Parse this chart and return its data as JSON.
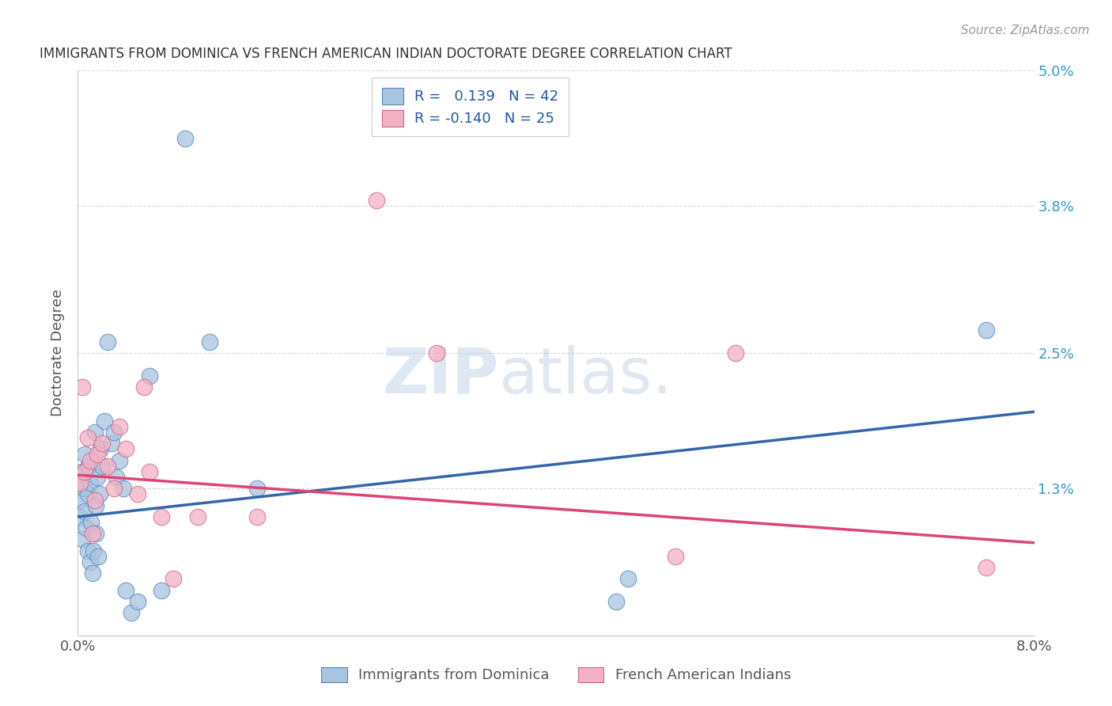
{
  "title": "IMMIGRANTS FROM DOMINICA VS FRENCH AMERICAN INDIAN DOCTORATE DEGREE CORRELATION CHART",
  "source": "Source: ZipAtlas.com",
  "ylabel": "Doctorate Degree",
  "blue_label": "Immigrants from Dominica",
  "pink_label": "French American Indians",
  "blue_R": "0.139",
  "blue_N": "42",
  "pink_R": "-0.140",
  "pink_N": "25",
  "blue_color": "#a8c4e0",
  "pink_color": "#f4b0c4",
  "blue_edge_color": "#5588bb",
  "pink_edge_color": "#cc6688",
  "blue_line_color": "#3366aa",
  "pink_line_color": "#dd4477",
  "watermark_zip": "ZIP",
  "watermark_atlas": "atlas.",
  "xmin": 0.0,
  "xmax": 8.0,
  "ymin": 0.0,
  "ymax": 5.0,
  "ytick_vals": [
    0.0,
    1.3,
    2.5,
    3.8,
    5.0
  ],
  "ytick_labels": [
    "",
    "1.3%",
    "2.5%",
    "3.8%",
    "5.0%"
  ],
  "xtick_vals": [
    0.0,
    2.0,
    4.0,
    6.0,
    8.0
  ],
  "xtick_labels": [
    "0.0%",
    "",
    "",
    "",
    "8.0%"
  ],
  "blue_x": [
    0.02,
    0.02,
    0.03,
    0.04,
    0.05,
    0.06,
    0.06,
    0.07,
    0.08,
    0.08,
    0.09,
    0.1,
    0.1,
    0.11,
    0.12,
    0.13,
    0.14,
    0.15,
    0.15,
    0.16,
    0.17,
    0.18,
    0.19,
    0.2,
    0.22,
    0.25,
    0.28,
    0.3,
    0.32,
    0.35,
    0.38,
    0.4,
    0.45,
    0.5,
    0.6,
    0.7,
    0.9,
    1.1,
    1.5,
    4.5,
    4.6,
    7.6
  ],
  "blue_y": [
    1.05,
    1.2,
    1.45,
    0.85,
    1.3,
    1.6,
    1.1,
    0.95,
    1.25,
    0.75,
    1.5,
    0.65,
    1.35,
    1.0,
    0.55,
    0.75,
    1.8,
    0.9,
    1.15,
    1.4,
    0.7,
    1.25,
    1.65,
    1.5,
    1.9,
    2.6,
    1.7,
    1.8,
    1.4,
    1.55,
    1.3,
    0.4,
    0.2,
    0.3,
    2.3,
    0.4,
    4.4,
    2.6,
    1.3,
    0.3,
    0.5,
    2.7
  ],
  "pink_x": [
    0.02,
    0.04,
    0.06,
    0.08,
    0.1,
    0.12,
    0.14,
    0.16,
    0.2,
    0.25,
    0.3,
    0.35,
    0.4,
    0.5,
    0.55,
    0.6,
    0.7,
    0.8,
    1.0,
    1.5,
    2.5,
    3.0,
    5.0,
    5.5,
    7.6
  ],
  "pink_y": [
    1.35,
    2.2,
    1.45,
    1.75,
    1.55,
    0.9,
    1.2,
    1.6,
    1.7,
    1.5,
    1.3,
    1.85,
    1.65,
    1.25,
    2.2,
    1.45,
    1.05,
    0.5,
    1.05,
    1.05,
    3.85,
    2.5,
    0.7,
    2.5,
    0.6
  ],
  "blue_trend_x": [
    0.0,
    8.0
  ],
  "blue_trend_y": [
    1.05,
    1.98
  ],
  "pink_trend_x": [
    0.0,
    8.0
  ],
  "pink_trend_y": [
    1.42,
    0.82
  ],
  "grid_color": "#d8d8d8",
  "spine_color": "#cccccc",
  "title_color": "#333333",
  "source_color": "#999999",
  "tick_color": "#555555",
  "ylabel_color": "#555555",
  "right_tick_color": "#3399cc"
}
